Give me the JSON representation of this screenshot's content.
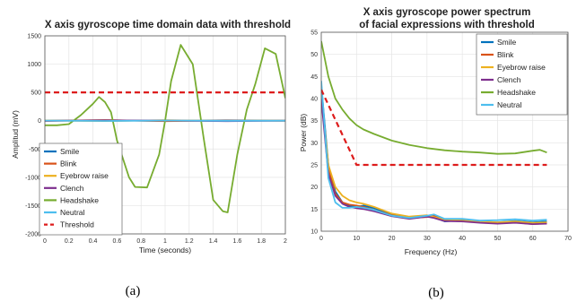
{
  "chart_data": [
    {
      "type": "line",
      "title": "X axis gyroscope time domain data with threshold",
      "xlabel": "Time (seconds)",
      "ylabel": "Amplitud (mV)",
      "xlim": [
        0,
        2
      ],
      "ylim": [
        -2000,
        1500
      ],
      "xticks": [
        0,
        0.2,
        0.4,
        0.6,
        0.8,
        1,
        1.2,
        1.4,
        1.6,
        1.8,
        2
      ],
      "yticks": [
        -2000,
        -1500,
        -1000,
        -500,
        0,
        500,
        1000,
        1500
      ],
      "grid": true,
      "legend_position": "lower-left",
      "caption": "(a)",
      "series": [
        {
          "name": "Smile",
          "color": "#0072bd",
          "style": "solid",
          "x": [
            0,
            0.5,
            1,
            1.5,
            2
          ],
          "y": [
            0,
            8,
            -5,
            6,
            0
          ]
        },
        {
          "name": "Blink",
          "color": "#d95319",
          "style": "solid",
          "x": [
            0,
            0.5,
            1,
            1.5,
            2
          ],
          "y": [
            -5,
            12,
            -8,
            4,
            -3
          ]
        },
        {
          "name": "Eyebrow raise",
          "color": "#edb120",
          "style": "solid",
          "x": [
            0,
            0.5,
            1,
            1.5,
            2
          ],
          "y": [
            4,
            -6,
            10,
            -4,
            5
          ]
        },
        {
          "name": "Clench",
          "color": "#7e2f8e",
          "style": "solid",
          "x": [
            0,
            0.5,
            1,
            1.5,
            2
          ],
          "y": [
            -3,
            5,
            3,
            -7,
            2
          ]
        },
        {
          "name": "Headshake",
          "color": "#77ac30",
          "style": "solid",
          "x": [
            0,
            0.1,
            0.2,
            0.3,
            0.4,
            0.45,
            0.5,
            0.55,
            0.6,
            0.7,
            0.75,
            0.85,
            0.95,
            1.0,
            1.05,
            1.13,
            1.23,
            1.32,
            1.4,
            1.48,
            1.52,
            1.6,
            1.68,
            1.75,
            1.83,
            1.92,
            2.0
          ],
          "y": [
            -80,
            -80,
            -60,
            100,
            300,
            420,
            330,
            150,
            -350,
            -1000,
            -1170,
            -1180,
            -600,
            0,
            700,
            1340,
            1000,
            -300,
            -1400,
            -1600,
            -1620,
            -600,
            200,
            650,
            1280,
            1180,
            400
          ]
        },
        {
          "name": "Neutral",
          "color": "#4dbeee",
          "style": "solid",
          "x": [
            0,
            0.5,
            1,
            1.5,
            2
          ],
          "y": [
            2,
            -4,
            3,
            -2,
            1
          ]
        },
        {
          "name": "Threshold",
          "color": "#dd1c1c",
          "style": "dashed",
          "x": [
            0,
            2
          ],
          "y": [
            500,
            500
          ]
        }
      ]
    },
    {
      "type": "line",
      "title": "X axis gyroscope power spectrum",
      "subtitle": "of facial expressions with threshold",
      "xlabel": "Frequency (Hz)",
      "ylabel": "Power (dB)",
      "xlim": [
        0,
        70
      ],
      "ylim": [
        10,
        55
      ],
      "xticks": [
        0,
        10,
        20,
        30,
        40,
        50,
        60,
        70
      ],
      "yticks": [
        10,
        15,
        20,
        25,
        30,
        35,
        40,
        45,
        50,
        55
      ],
      "grid": true,
      "legend_position": "top-right",
      "caption": "(b)",
      "series": [
        {
          "name": "Smile",
          "color": "#0072bd",
          "style": "solid",
          "x": [
            0,
            2,
            4,
            6,
            8,
            10,
            12,
            15,
            20,
            25,
            30,
            32,
            35,
            40,
            45,
            50,
            55,
            60,
            64
          ],
          "y": [
            43,
            25,
            19,
            16.5,
            15.8,
            15.5,
            15.8,
            15.2,
            13.8,
            13.2,
            13.5,
            13.2,
            12.2,
            12.5,
            12.2,
            12,
            12.3,
            12,
            12.2
          ]
        },
        {
          "name": "Blink",
          "color": "#d95319",
          "style": "solid",
          "x": [
            0,
            2,
            4,
            6,
            8,
            10,
            12,
            15,
            20,
            25,
            30,
            32,
            35,
            40,
            45,
            50,
            55,
            60,
            64
          ],
          "y": [
            42,
            24,
            18.5,
            16.5,
            16,
            15.8,
            15.5,
            14.8,
            13.6,
            13,
            13.2,
            13.5,
            12.5,
            12.3,
            12,
            11.8,
            12,
            11.6,
            11.8
          ]
        },
        {
          "name": "Eyebrow raise",
          "color": "#edb120",
          "style": "solid",
          "x": [
            0,
            2,
            4,
            6,
            8,
            10,
            12,
            15,
            20,
            25,
            30,
            32,
            35,
            40,
            45,
            50,
            55,
            60,
            64
          ],
          "y": [
            41,
            25,
            20,
            18,
            17,
            16.5,
            16.2,
            15.5,
            14,
            13.3,
            13.6,
            13.2,
            12.6,
            12.4,
            12.2,
            12,
            12.2,
            11.9,
            12
          ]
        },
        {
          "name": "Clench",
          "color": "#7e2f8e",
          "style": "solid",
          "x": [
            0,
            2,
            4,
            6,
            8,
            10,
            12,
            15,
            20,
            25,
            30,
            32,
            35,
            40,
            45,
            50,
            55,
            60,
            64
          ],
          "y": [
            40,
            23,
            18,
            16.2,
            15.5,
            15.2,
            15,
            14.5,
            13.4,
            12.8,
            13.3,
            13,
            12.3,
            12.2,
            11.9,
            11.7,
            11.9,
            11.6,
            11.7
          ]
        },
        {
          "name": "Headshake",
          "color": "#77ac30",
          "style": "solid",
          "x": [
            0,
            2,
            4,
            6,
            8,
            10,
            12,
            15,
            20,
            25,
            30,
            35,
            40,
            45,
            50,
            55,
            60,
            62,
            64
          ],
          "y": [
            53,
            45,
            40,
            37.5,
            35.5,
            34,
            33,
            32,
            30.5,
            29.5,
            28.8,
            28.3,
            28,
            27.8,
            27.5,
            27.6,
            28.2,
            28.4,
            27.8
          ]
        },
        {
          "name": "Neutral",
          "color": "#4dbeee",
          "style": "solid",
          "x": [
            0,
            2,
            4,
            6,
            8,
            10,
            12,
            15,
            20,
            25,
            30,
            32,
            35,
            40,
            45,
            50,
            55,
            60,
            64
          ],
          "y": [
            44,
            22,
            16.5,
            15.3,
            15.3,
            15.5,
            15.3,
            14.8,
            13.5,
            13,
            13.5,
            13.8,
            12.8,
            12.8,
            12.4,
            12.5,
            12.7,
            12.4,
            12.6
          ]
        },
        {
          "name": "",
          "color": "#dd1c1c",
          "style": "dashed",
          "x": [
            0,
            10,
            64
          ],
          "y": [
            42,
            25,
            25
          ]
        }
      ]
    }
  ]
}
